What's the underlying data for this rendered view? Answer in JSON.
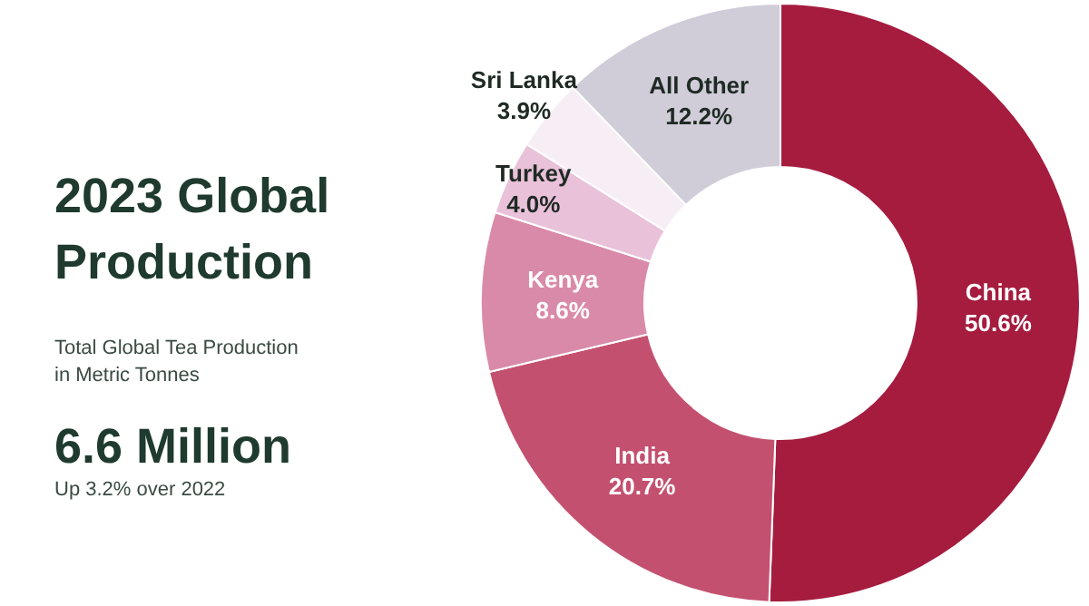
{
  "chart_data": {
    "type": "donut",
    "title": "2023 Global Production",
    "subtitle": "Total Global Tea Production in Metric Tonnes",
    "annotations": [
      "6.6 Million",
      "Up 3.2% over 2022"
    ],
    "categories": [
      "China",
      "India",
      "Kenya",
      "Turkey",
      "Sri Lanka",
      "All Other"
    ],
    "values": [
      50.6,
      20.7,
      8.6,
      4.0,
      3.9,
      12.2
    ],
    "value_labels": [
      "50.6%",
      "20.7%",
      "8.6%",
      "4.0%",
      "3.9%",
      "12.2%"
    ],
    "colors": [
      "#a51c3f",
      "#c4506f",
      "#d98aa8",
      "#e9c1d9",
      "#f7eef5",
      "#d0cdd9"
    ]
  }
}
